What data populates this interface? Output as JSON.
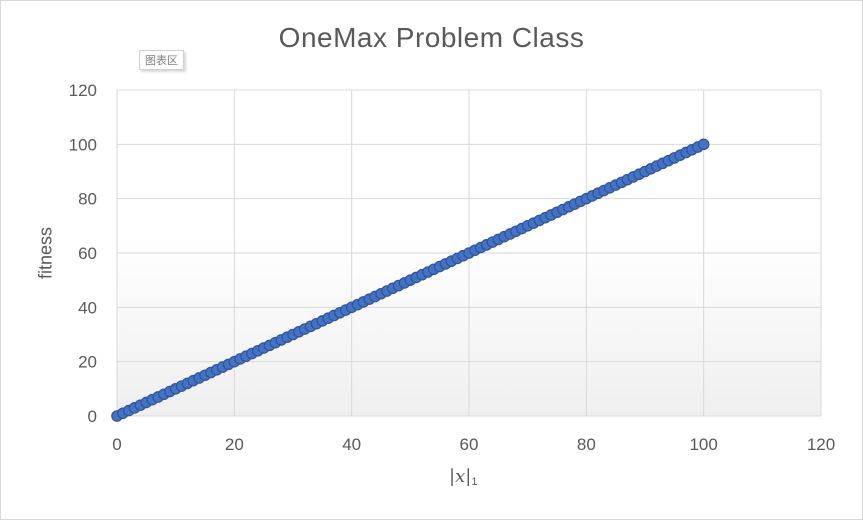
{
  "chart_data": {
    "type": "scatter",
    "title": "OneMax Problem Class",
    "xlabel_bar": "|",
    "xlabel_var": "x",
    "xlabel_sub": "1",
    "ylabel": "fitness",
    "xlim": [
      0,
      120
    ],
    "ylim": [
      0,
      120
    ],
    "xticks": [
      0,
      20,
      40,
      60,
      80,
      100,
      120
    ],
    "yticks": [
      0,
      20,
      40,
      60,
      80,
      100,
      120
    ],
    "xtick_labels": [
      "0",
      "20",
      "40",
      "60",
      "80",
      "100",
      "120"
    ],
    "ytick_labels": [
      "0",
      "20",
      "40",
      "60",
      "80",
      "100",
      "120"
    ],
    "grid": true,
    "marker_fill": "#4472c4",
    "marker_stroke": "#2f5597",
    "series": [
      {
        "x": [
          0,
          1,
          2,
          3,
          4,
          5,
          6,
          7,
          8,
          9,
          10,
          11,
          12,
          13,
          14,
          15,
          16,
          17,
          18,
          19,
          20,
          21,
          22,
          23,
          24,
          25,
          26,
          27,
          28,
          29,
          30,
          31,
          32,
          33,
          34,
          35,
          36,
          37,
          38,
          39,
          40,
          41,
          42,
          43,
          44,
          45,
          46,
          47,
          48,
          49,
          50,
          51,
          52,
          53,
          54,
          55,
          56,
          57,
          58,
          59,
          60,
          61,
          62,
          63,
          64,
          65,
          66,
          67,
          68,
          69,
          70,
          71,
          72,
          73,
          74,
          75,
          76,
          77,
          78,
          79,
          80,
          81,
          82,
          83,
          84,
          85,
          86,
          87,
          88,
          89,
          90,
          91,
          92,
          93,
          94,
          95,
          96,
          97,
          98,
          99,
          100
        ],
        "y": [
          0,
          1,
          2,
          3,
          4,
          5,
          6,
          7,
          8,
          9,
          10,
          11,
          12,
          13,
          14,
          15,
          16,
          17,
          18,
          19,
          20,
          21,
          22,
          23,
          24,
          25,
          26,
          27,
          28,
          29,
          30,
          31,
          32,
          33,
          34,
          35,
          36,
          37,
          38,
          39,
          40,
          41,
          42,
          43,
          44,
          45,
          46,
          47,
          48,
          49,
          50,
          51,
          52,
          53,
          54,
          55,
          56,
          57,
          58,
          59,
          60,
          61,
          62,
          63,
          64,
          65,
          66,
          67,
          68,
          69,
          70,
          71,
          72,
          73,
          74,
          75,
          76,
          77,
          78,
          79,
          80,
          81,
          82,
          83,
          84,
          85,
          86,
          87,
          88,
          89,
          90,
          91,
          92,
          93,
          94,
          95,
          96,
          97,
          98,
          99,
          100
        ]
      }
    ]
  },
  "chart_area_tag": "图表区"
}
